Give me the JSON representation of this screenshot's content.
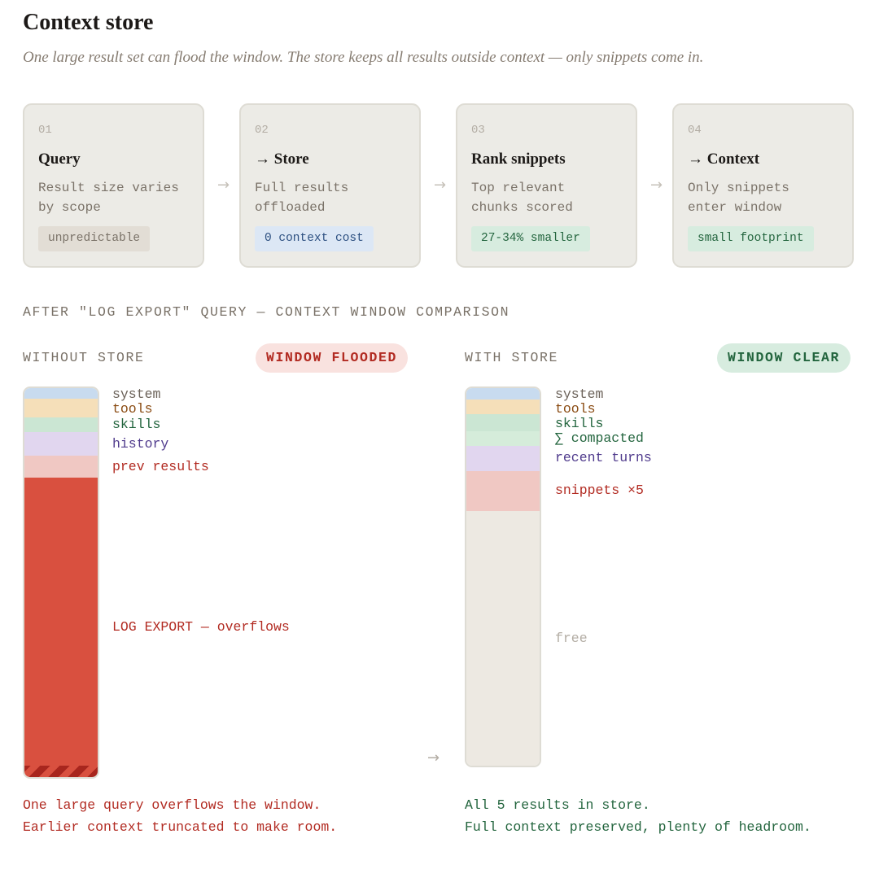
{
  "header": {
    "title": "Context store",
    "subtitle": "One large result set can flood the window. The store keeps all results outside context — only snippets come in."
  },
  "pipeline": [
    {
      "number": "01",
      "title": "Query",
      "description": "Result size varies\nby scope",
      "badge": "unpredictable",
      "badge_tone": "neutral"
    },
    {
      "number": "02",
      "title": "→ Store",
      "description": "Full results\noffloaded",
      "badge": "0 context cost",
      "badge_tone": "blue"
    },
    {
      "number": "03",
      "title": "Rank snippets",
      "description": "Top relevant\nchunks scored",
      "badge": "27-34% smaller",
      "badge_tone": "green"
    },
    {
      "number": "04",
      "title": "→ Context",
      "description": "Only snippets\nenter window",
      "badge": "small footprint",
      "badge_tone": "green"
    }
  ],
  "comparison": {
    "label": "AFTER \"LOG EXPORT\" QUERY — CONTEXT WINDOW COMPARISON",
    "without_store": {
      "label": "WITHOUT STORE",
      "status": "WINDOW FLOODED",
      "status_color": "#b22b22",
      "segments": [
        {
          "label": "system",
          "color": "#c8dbef",
          "text_color": "#6b6259",
          "share": 0.028
        },
        {
          "label": "tools",
          "color": "#f5dfb9",
          "text_color": "#8a4b12",
          "share": 0.048
        },
        {
          "label": "skills",
          "color": "#cbe6d3",
          "text_color": "#23653e",
          "share": 0.038
        },
        {
          "label": "history",
          "color": "#e1d6ef",
          "text_color": "#4f3a8c",
          "share": 0.06
        },
        {
          "label": "prev results",
          "color": "#f0c8c3",
          "text_color": "#b22b22",
          "share": 0.056
        },
        {
          "label": "LOG EXPORT — overflows",
          "color": "#d9503f",
          "text_color": "#b22b22",
          "share": 0.77
        }
      ],
      "caption": [
        "One large query overflows the window.",
        "Earlier context truncated to make room."
      ]
    },
    "with_store": {
      "label": "WITH STORE",
      "status": "WINDOW CLEAR",
      "status_color": "#23653e",
      "segments": [
        {
          "label": "system",
          "color": "#c8dbef",
          "text_color": "#6b6259",
          "share": 0.03
        },
        {
          "label": "tools",
          "color": "#f5dfb9",
          "text_color": "#8a4b12",
          "share": 0.038
        },
        {
          "label": "skills",
          "color": "#cbe6d3",
          "text_color": "#23653e",
          "share": 0.047
        },
        {
          "label": "∑ compacted",
          "color": "#d5ecda",
          "text_color": "#23653e",
          "share": 0.038
        },
        {
          "label": "recent turns",
          "color": "#e1d6ef",
          "text_color": "#4f3a8c",
          "share": 0.066
        },
        {
          "label": "snippets ×5",
          "color": "#f0c8c3",
          "text_color": "#b22b22",
          "share": 0.107
        },
        {
          "label": "free",
          "color": "#ede9e2",
          "text_color": "#b3ada4",
          "share": 0.674
        }
      ],
      "caption": [
        "All 5 results in store.",
        "Full context preserved, plenty of headroom."
      ]
    }
  }
}
